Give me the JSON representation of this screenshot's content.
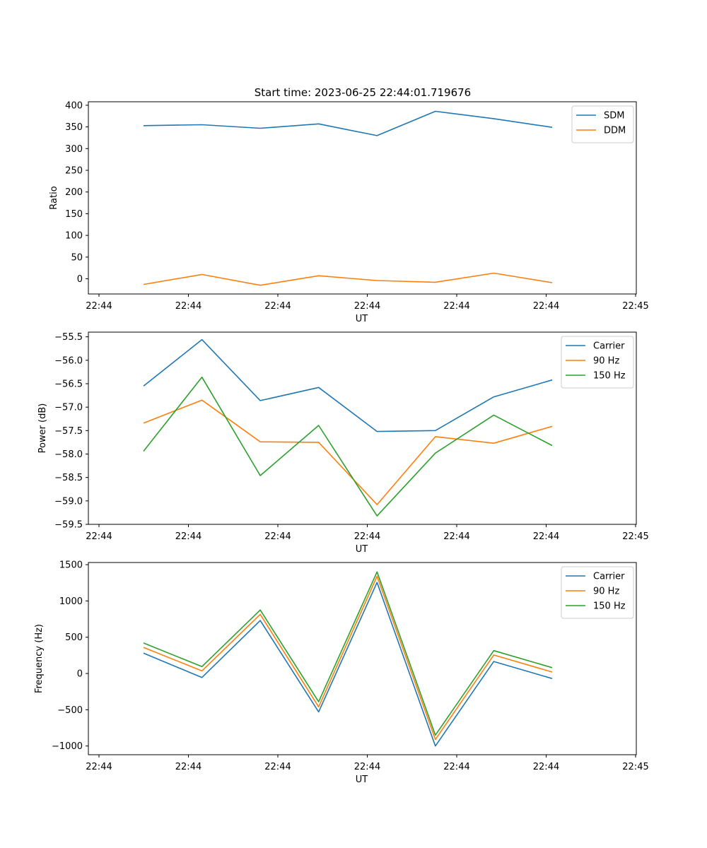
{
  "figure_title": "Start time: 2023-06-25 22:44:01.719676",
  "chart_data": [
    {
      "type": "line",
      "title": "Start time: 2023-06-25 22:44:01.719676",
      "xlabel": "UT",
      "ylabel": "Ratio",
      "x": [
        1,
        2,
        3,
        4,
        5,
        6,
        7,
        8
      ],
      "x_tick_labels": [
        "22:44",
        "22:44",
        "22:44",
        "22:44",
        "22:44",
        "22:44",
        "22:44"
      ],
      "x_tick_last_label": "22:45",
      "ylim": [
        -35,
        408
      ],
      "yticks": [
        0,
        50,
        100,
        150,
        200,
        250,
        300,
        350,
        400
      ],
      "legend_position": "top-right",
      "series": [
        {
          "name": "SDM",
          "color": "#1f77b4",
          "values": [
            353,
            355,
            347,
            357,
            330,
            386,
            369,
            349
          ]
        },
        {
          "name": "DDM",
          "color": "#ff7f0e",
          "values": [
            -13,
            10,
            -15,
            7,
            -4,
            -8,
            13,
            -9
          ]
        }
      ]
    },
    {
      "type": "line",
      "title": "",
      "xlabel": "UT",
      "ylabel": "Power (dB)",
      "x": [
        1,
        2,
        3,
        4,
        5,
        6,
        7,
        8
      ],
      "x_tick_labels": [
        "22:44",
        "22:44",
        "22:44",
        "22:44",
        "22:44",
        "22:44",
        "22:44"
      ],
      "x_tick_last_label": "22:45",
      "ylim": [
        -59.5,
        -55.4
      ],
      "yticks": [
        -59.5,
        -59.0,
        -58.5,
        -58.0,
        -57.5,
        -57.0,
        -56.5,
        -56.0,
        -55.5
      ],
      "legend_position": "top-right",
      "series": [
        {
          "name": "Carrier",
          "color": "#1f77b4",
          "values": [
            -56.55,
            -55.56,
            -56.86,
            -56.58,
            -57.52,
            -57.5,
            -56.78,
            -56.42
          ]
        },
        {
          "name": "90 Hz",
          "color": "#ff7f0e",
          "values": [
            -57.34,
            -56.85,
            -57.74,
            -57.75,
            -59.08,
            -57.63,
            -57.77,
            -57.41
          ]
        },
        {
          "name": "150 Hz",
          "color": "#2ca02c",
          "values": [
            -57.94,
            -56.36,
            -58.46,
            -57.39,
            -59.32,
            -57.98,
            -57.17,
            -57.82
          ]
        }
      ]
    },
    {
      "type": "line",
      "title": "",
      "xlabel": "UT",
      "ylabel": "Frequency (Hz)",
      "x": [
        1,
        2,
        3,
        4,
        5,
        6,
        7,
        8
      ],
      "x_tick_labels": [
        "22:44",
        "22:44",
        "22:44",
        "22:44",
        "22:44",
        "22:44",
        "22:44"
      ],
      "x_tick_last_label": "22:45",
      "ylim": [
        -1120,
        1530
      ],
      "yticks": [
        -1000,
        -500,
        0,
        500,
        1000,
        1500
      ],
      "legend_position": "top-right",
      "series": [
        {
          "name": "Carrier",
          "color": "#1f77b4",
          "values": [
            280,
            -55,
            730,
            -530,
            1255,
            -1000,
            165,
            -70
          ]
        },
        {
          "name": "90 Hz",
          "color": "#ff7f0e",
          "values": [
            360,
            35,
            815,
            -460,
            1340,
            -910,
            255,
            20
          ]
        },
        {
          "name": "150 Hz",
          "color": "#2ca02c",
          "values": [
            420,
            95,
            875,
            -390,
            1400,
            -850,
            315,
            80
          ]
        }
      ]
    }
  ]
}
